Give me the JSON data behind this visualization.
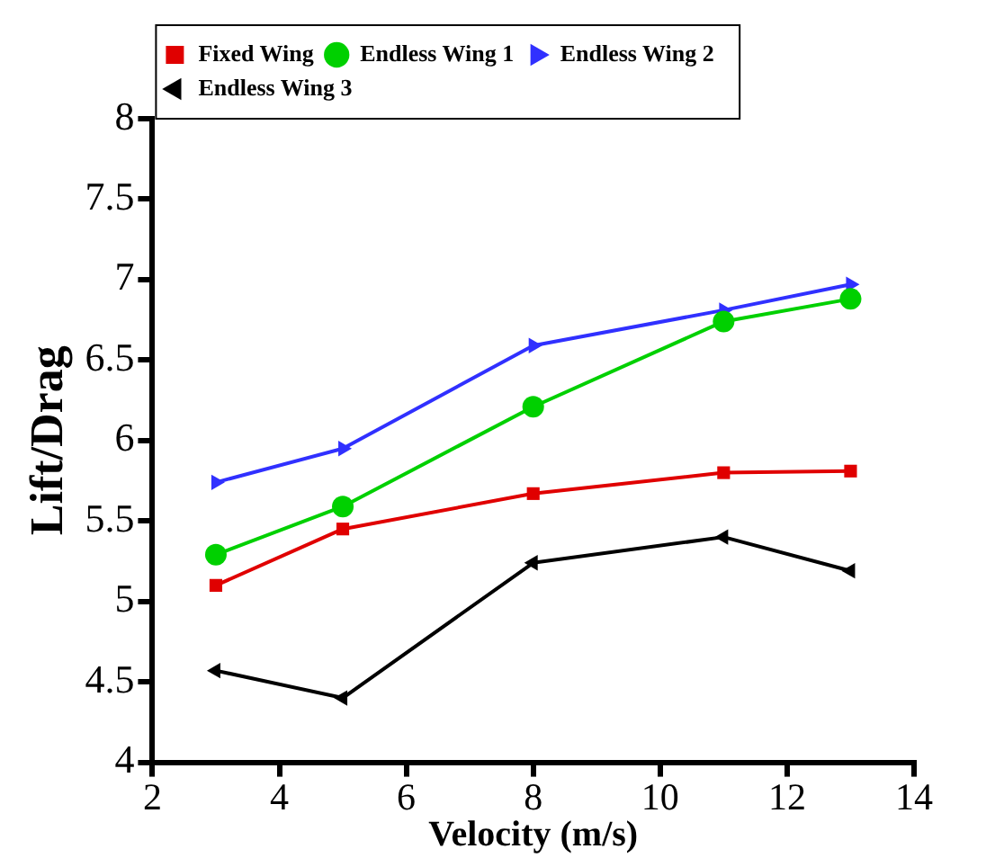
{
  "chart_data": {
    "type": "line",
    "xlabel": "Velocity (m/s)",
    "ylabel": "Lift/Drag",
    "x": [
      3,
      5,
      8,
      11,
      13
    ],
    "series": [
      {
        "name": "Fixed Wing",
        "color": "#e00000",
        "marker": "square",
        "values": [
          5.1,
          5.45,
          5.67,
          5.8,
          5.81
        ]
      },
      {
        "name": "Endless Wing 1",
        "color": "#00d000",
        "marker": "circle",
        "values": [
          5.29,
          5.59,
          6.21,
          6.74,
          6.88
        ]
      },
      {
        "name": "Endless Wing 2",
        "color": "#3030ff",
        "marker": "triangle-right",
        "values": [
          5.74,
          5.95,
          6.59,
          6.81,
          6.97
        ]
      },
      {
        "name": "Endless Wing 3",
        "color": "#000000",
        "marker": "triangle-left",
        "values": [
          4.57,
          4.4,
          5.24,
          5.4,
          5.19
        ]
      }
    ],
    "xlim": [
      2,
      14
    ],
    "xticks": [
      2,
      4,
      6,
      8,
      10,
      12,
      14
    ],
    "ylim": [
      4,
      8
    ],
    "yticks": [
      4,
      4.5,
      5,
      5.5,
      6,
      6.5,
      7,
      7.5,
      8
    ],
    "grid": false,
    "legend": "top left"
  }
}
